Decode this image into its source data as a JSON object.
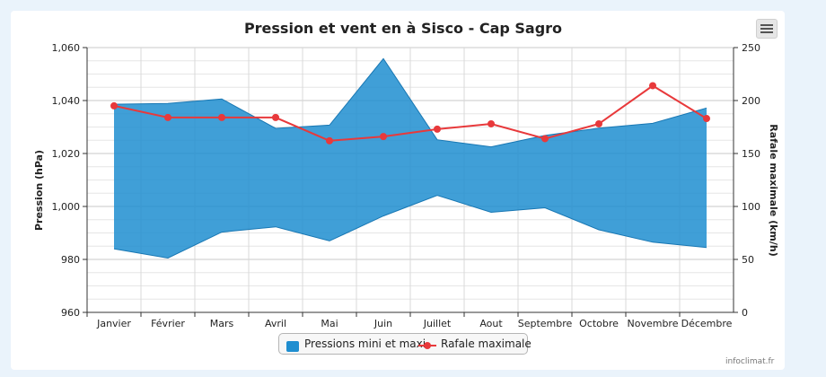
{
  "chart_data": {
    "type": "area",
    "title": "Pression et vent en à Sisco - Cap Sagro",
    "categories": [
      "Janvier",
      "Février",
      "Mars",
      "Avril",
      "Mai",
      "Juin",
      "Juillet",
      "Aout",
      "Septembre",
      "Octobre",
      "Novembre",
      "Décembre"
    ],
    "pressure_axis": {
      "label": "Pression (hPa)",
      "ticks": [
        "960",
        "980",
        "1,000",
        "1,020",
        "1,040",
        "1,060"
      ],
      "range": [
        960,
        1060
      ]
    },
    "wind_axis": {
      "label": "Rafale maximale (km/h)",
      "ticks": [
        "0",
        "50",
        "100",
        "150",
        "200",
        "250"
      ],
      "range": [
        0,
        250
      ]
    },
    "series": [
      {
        "name": "Pressions mini et maxi",
        "kind": "arearange",
        "axis": "pressure",
        "color": "#1f8ed0",
        "low": [
          984,
          980.5,
          990.3,
          992.3,
          987,
          996.4,
          1004.2,
          997.8,
          999.5,
          991.2,
          986.5,
          984.5
        ],
        "high": [
          1038.6,
          1038.9,
          1040.6,
          1029.5,
          1030.7,
          1055.8,
          1025.2,
          1022.5,
          1026.8,
          1029.6,
          1031.4,
          1037.2
        ]
      },
      {
        "name": "Rafale maximale",
        "kind": "line",
        "axis": "wind",
        "color": "#e8393b",
        "values": [
          195,
          184,
          184,
          184,
          162,
          166,
          173,
          178,
          164,
          178,
          214,
          183
        ]
      }
    ],
    "grid": true,
    "legend_position": "bottom-center",
    "credits": "infoclimat.fr"
  },
  "ui": {
    "menu_icon": "hamburger-menu-icon",
    "background_color": "#eaf3fb"
  }
}
